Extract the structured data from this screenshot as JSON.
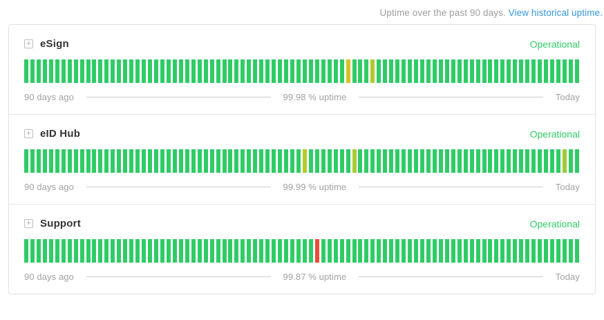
{
  "header": {
    "note_text": "Uptime over the past 90 days.",
    "link_text": "View historical uptime."
  },
  "icons": {
    "expand": "+"
  },
  "colors": {
    "bar_green": "#2fcc66",
    "status_green": "#2fcc66",
    "degraded_yellow": "#d5c327",
    "outage_red": "#e74c3c",
    "link_blue": "#3498db",
    "muted_text": "#9e9e9e"
  },
  "components": [
    {
      "name": "eSign",
      "status": "Operational",
      "left_label": "90 days ago",
      "uptime_label": "99.98 % uptime",
      "right_label": "Today",
      "bar_count": 90,
      "bars": {
        "52": "#d5c327",
        "56": "#b0c92e"
      }
    },
    {
      "name": "eID Hub",
      "status": "Operational",
      "left_label": "90 days ago",
      "uptime_label": "99.99 % uptime",
      "right_label": "Today",
      "bar_count": 90,
      "bars": {
        "45": "#b6ca2b",
        "53": "#a9cb35",
        "87": "#9ecb3b"
      }
    },
    {
      "name": "Support",
      "status": "Operational",
      "left_label": "90 days ago",
      "uptime_label": "99.87 % uptime",
      "right_label": "Today",
      "bar_count": 90,
      "bars": {
        "47": "#e74c3c"
      }
    }
  ]
}
